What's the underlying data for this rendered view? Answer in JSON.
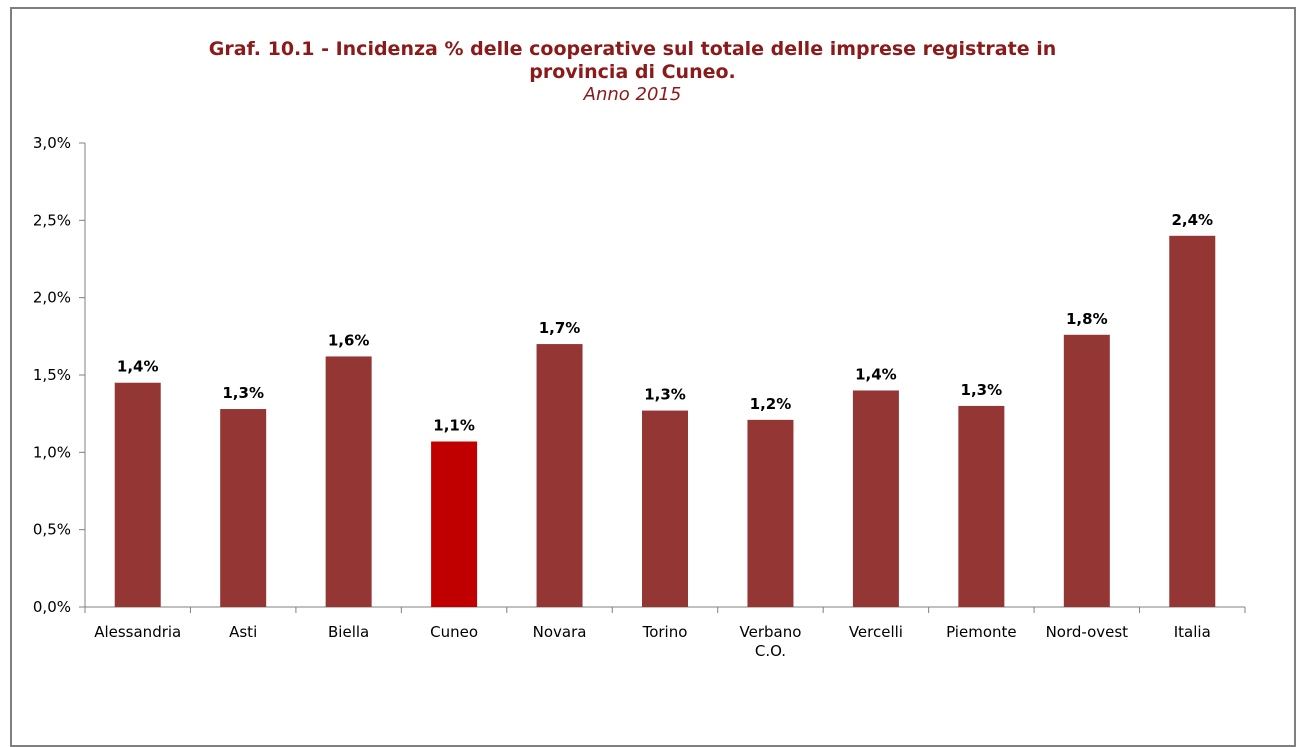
{
  "chart_data": {
    "type": "bar",
    "title_line1": "Graf. 10.1 - Incidenza % delle cooperative sul totale delle imprese registrate in",
    "title_line2": "provincia di Cuneo.",
    "subtitle": "Anno 2015",
    "categories": [
      [
        "Alessandria"
      ],
      [
        "Asti"
      ],
      [
        "Biella"
      ],
      [
        "Cuneo"
      ],
      [
        "Novara"
      ],
      [
        "Torino"
      ],
      [
        "Verbano",
        "C.O."
      ],
      [
        "Vercelli"
      ],
      [
        "Piemonte"
      ],
      [
        "Nord-ovest"
      ],
      [
        "Italia"
      ]
    ],
    "values": [
      1.45,
      1.28,
      1.62,
      1.07,
      1.7,
      1.27,
      1.21,
      1.4,
      1.3,
      1.76,
      2.4
    ],
    "data_labels": [
      "1,4%",
      "1,3%",
      "1,6%",
      "1,1%",
      "1,7%",
      "1,3%",
      "1,2%",
      "1,4%",
      "1,3%",
      "1,8%",
      "2,4%"
    ],
    "bar_colors": [
      "#943634",
      "#943634",
      "#943634",
      "#c00000",
      "#943634",
      "#943634",
      "#943634",
      "#943634",
      "#943634",
      "#943634",
      "#943634"
    ],
    "ylim": [
      0,
      3.0
    ],
    "yticks": [
      0,
      0.5,
      1.0,
      1.5,
      2.0,
      2.5,
      3.0
    ],
    "ytick_labels": [
      "0,0%",
      "0,5%",
      "1,0%",
      "1,5%",
      "2,0%",
      "2,5%",
      "3,0%"
    ],
    "xlabel": "",
    "ylabel": "",
    "grid": false,
    "legend": "none"
  }
}
